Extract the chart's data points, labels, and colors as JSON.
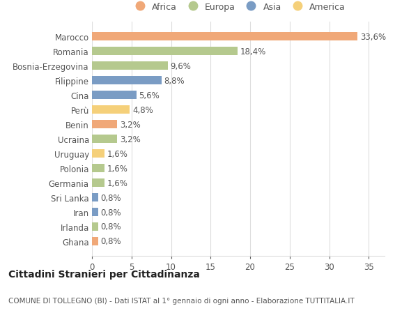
{
  "countries": [
    "Marocco",
    "Romania",
    "Bosnia-Erzegovina",
    "Filippine",
    "Cina",
    "Perù",
    "Benin",
    "Ucraina",
    "Uruguay",
    "Polonia",
    "Germania",
    "Sri Lanka",
    "Iran",
    "Irlanda",
    "Ghana"
  ],
  "values": [
    33.6,
    18.4,
    9.6,
    8.8,
    5.6,
    4.8,
    3.2,
    3.2,
    1.6,
    1.6,
    1.6,
    0.8,
    0.8,
    0.8,
    0.8
  ],
  "labels": [
    "33,6%",
    "18,4%",
    "9,6%",
    "8,8%",
    "5,6%",
    "4,8%",
    "3,2%",
    "3,2%",
    "1,6%",
    "1,6%",
    "1,6%",
    "0,8%",
    "0,8%",
    "0,8%",
    "0,8%"
  ],
  "continents": [
    "Africa",
    "Europa",
    "Europa",
    "Asia",
    "Asia",
    "America",
    "Africa",
    "Europa",
    "America",
    "Europa",
    "Europa",
    "Asia",
    "Asia",
    "Europa",
    "Africa"
  ],
  "colors": {
    "Africa": "#F0A878",
    "Europa": "#B5C98E",
    "Asia": "#7A9CC4",
    "America": "#F5D07A"
  },
  "legend_order": [
    "Africa",
    "Europa",
    "Asia",
    "America"
  ],
  "title": "Cittadini Stranieri per Cittadinanza",
  "subtitle": "COMUNE DI TOLLEGNO (BI) - Dati ISTAT al 1° gennaio di ogni anno - Elaborazione TUTTITALIA.IT",
  "xlim": [
    0,
    37
  ],
  "background_color": "#ffffff",
  "grid_color": "#dddddd",
  "label_fontsize": 8.5,
  "tick_fontsize": 8.5,
  "title_fontsize": 10,
  "subtitle_fontsize": 7.5
}
